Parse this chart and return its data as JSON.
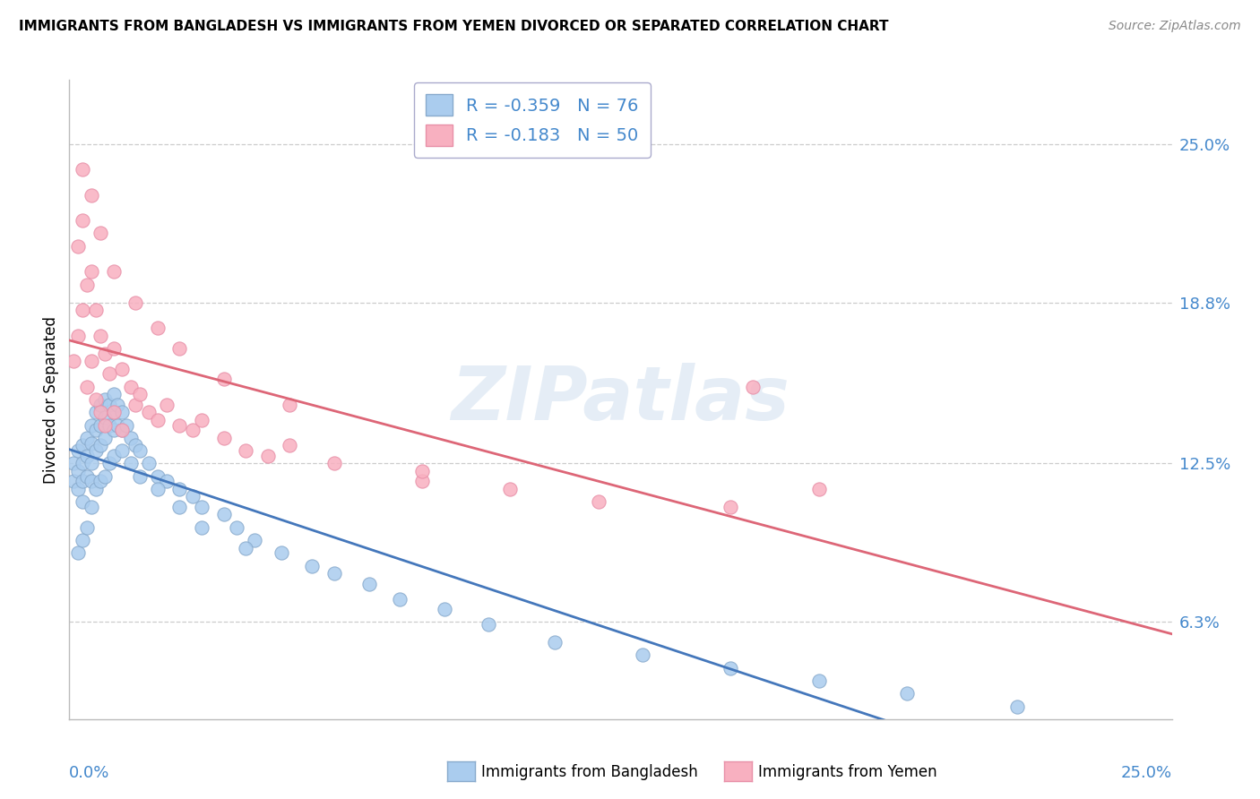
{
  "title": "IMMIGRANTS FROM BANGLADESH VS IMMIGRANTS FROM YEMEN DIVORCED OR SEPARATED CORRELATION CHART",
  "source": "Source: ZipAtlas.com",
  "ylabel": "Divorced or Separated",
  "ytick_vals": [
    0.063,
    0.125,
    0.188,
    0.25
  ],
  "ytick_labels": [
    "6.3%",
    "12.5%",
    "18.8%",
    "25.0%"
  ],
  "xlim": [
    0.0,
    0.25
  ],
  "ylim": [
    0.025,
    0.275
  ],
  "legend_r1": "-0.359",
  "legend_n1": "76",
  "legend_r2": "-0.183",
  "legend_n2": "50",
  "color_bangladesh": "#aaccee",
  "color_yemen": "#f8b0c0",
  "edge_bangladesh": "#88aacc",
  "edge_yemen": "#e890a8",
  "trendline_bangladesh": "#4477bb",
  "trendline_yemen": "#dd6677",
  "background_color": "#ffffff",
  "watermark": "ZIPatlas",
  "bangladesh_x": [
    0.001,
    0.001,
    0.002,
    0.002,
    0.002,
    0.003,
    0.003,
    0.003,
    0.003,
    0.004,
    0.004,
    0.004,
    0.005,
    0.005,
    0.005,
    0.005,
    0.006,
    0.006,
    0.006,
    0.007,
    0.007,
    0.007,
    0.008,
    0.008,
    0.008,
    0.009,
    0.009,
    0.01,
    0.01,
    0.01,
    0.011,
    0.011,
    0.012,
    0.012,
    0.013,
    0.014,
    0.015,
    0.016,
    0.018,
    0.02,
    0.022,
    0.025,
    0.028,
    0.03,
    0.035,
    0.038,
    0.042,
    0.048,
    0.055,
    0.06,
    0.068,
    0.075,
    0.085,
    0.095,
    0.11,
    0.13,
    0.15,
    0.17,
    0.19,
    0.215,
    0.002,
    0.003,
    0.004,
    0.005,
    0.006,
    0.007,
    0.008,
    0.009,
    0.01,
    0.012,
    0.014,
    0.016,
    0.02,
    0.025,
    0.03,
    0.04
  ],
  "bangladesh_y": [
    0.125,
    0.118,
    0.13,
    0.122,
    0.115,
    0.132,
    0.125,
    0.118,
    0.11,
    0.135,
    0.128,
    0.12,
    0.14,
    0.133,
    0.125,
    0.118,
    0.145,
    0.138,
    0.13,
    0.148,
    0.14,
    0.132,
    0.15,
    0.143,
    0.135,
    0.148,
    0.14,
    0.152,
    0.145,
    0.138,
    0.148,
    0.14,
    0.145,
    0.138,
    0.14,
    0.135,
    0.132,
    0.13,
    0.125,
    0.12,
    0.118,
    0.115,
    0.112,
    0.108,
    0.105,
    0.1,
    0.095,
    0.09,
    0.085,
    0.082,
    0.078,
    0.072,
    0.068,
    0.062,
    0.055,
    0.05,
    0.045,
    0.04,
    0.035,
    0.03,
    0.09,
    0.095,
    0.1,
    0.108,
    0.115,
    0.118,
    0.12,
    0.125,
    0.128,
    0.13,
    0.125,
    0.12,
    0.115,
    0.108,
    0.1,
    0.092
  ],
  "yemen_x": [
    0.001,
    0.002,
    0.002,
    0.003,
    0.003,
    0.004,
    0.004,
    0.005,
    0.005,
    0.006,
    0.006,
    0.007,
    0.007,
    0.008,
    0.008,
    0.009,
    0.01,
    0.01,
    0.012,
    0.012,
    0.014,
    0.015,
    0.016,
    0.018,
    0.02,
    0.022,
    0.025,
    0.028,
    0.03,
    0.035,
    0.04,
    0.045,
    0.05,
    0.06,
    0.08,
    0.1,
    0.12,
    0.15,
    0.17,
    0.003,
    0.005,
    0.007,
    0.01,
    0.015,
    0.02,
    0.025,
    0.035,
    0.05,
    0.08,
    0.155
  ],
  "yemen_y": [
    0.165,
    0.21,
    0.175,
    0.22,
    0.185,
    0.195,
    0.155,
    0.2,
    0.165,
    0.185,
    0.15,
    0.175,
    0.145,
    0.168,
    0.14,
    0.16,
    0.17,
    0.145,
    0.162,
    0.138,
    0.155,
    0.148,
    0.152,
    0.145,
    0.142,
    0.148,
    0.14,
    0.138,
    0.142,
    0.135,
    0.13,
    0.128,
    0.132,
    0.125,
    0.118,
    0.115,
    0.11,
    0.108,
    0.115,
    0.24,
    0.23,
    0.215,
    0.2,
    0.188,
    0.178,
    0.17,
    0.158,
    0.148,
    0.122,
    0.155
  ]
}
